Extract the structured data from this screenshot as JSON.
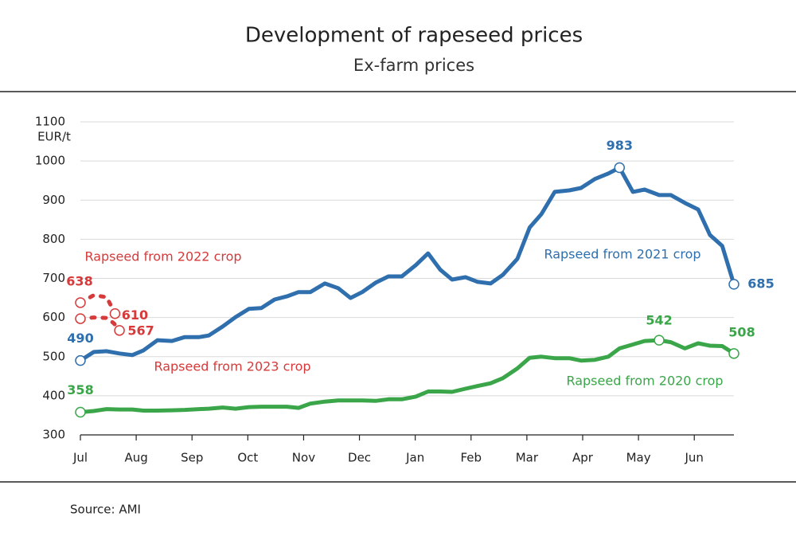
{
  "chart_data": {
    "type": "line",
    "title": "Development of rapeseed prices",
    "subtitle": "Ex-farm prices",
    "y_unit": "EUR/t",
    "source": "Source: AMI",
    "xlim": [
      0,
      11.71
    ],
    "xticks": [
      {
        "value": 0,
        "label": "Jul"
      },
      {
        "value": 1,
        "label": "Aug"
      },
      {
        "value": 2,
        "label": "Sep"
      },
      {
        "value": 3,
        "label": "Oct"
      },
      {
        "value": 4,
        "label": "Nov"
      },
      {
        "value": 5,
        "label": "Dec"
      },
      {
        "value": 6,
        "label": "Jan"
      },
      {
        "value": 7,
        "label": "Feb"
      },
      {
        "value": 8,
        "label": "Mar"
      },
      {
        "value": 9,
        "label": "Apr"
      },
      {
        "value": 10,
        "label": "May"
      },
      {
        "value": 11,
        "label": "Jun"
      }
    ],
    "ylim": [
      300,
      1100
    ],
    "yticks": [
      300,
      400,
      500,
      600,
      700,
      800,
      900,
      1000,
      1100
    ],
    "grid": true,
    "series": [
      {
        "name": "Rapseed from 2021 crop",
        "color": "#2f6fad",
        "dashed": false,
        "x": [
          0,
          0.24,
          0.47,
          0.7,
          0.93,
          1.13,
          1.38,
          1.64,
          1.87,
          2.13,
          2.3,
          2.55,
          2.78,
          3.02,
          3.24,
          3.48,
          3.7,
          3.91,
          4.12,
          4.38,
          4.62,
          4.84,
          5.05,
          5.29,
          5.52,
          5.76,
          6.01,
          6.23,
          6.45,
          6.66,
          6.9,
          7.12,
          7.35,
          7.57,
          7.83,
          8.05,
          8.26,
          8.5,
          8.76,
          8.97,
          9.22,
          9.46,
          9.66,
          9.9,
          10.11,
          10.37,
          10.58,
          10.83,
          11.07,
          11.28,
          11.5,
          11.71
        ],
        "values": [
          490,
          512,
          514,
          508,
          504,
          516,
          542,
          540,
          550,
          550,
          554,
          577,
          601,
          622,
          624,
          646,
          654,
          665,
          665,
          687,
          675,
          650,
          665,
          689,
          705,
          705,
          734,
          764,
          722,
          697,
          703,
          691,
          687,
          709,
          750,
          830,
          864,
          921,
          925,
          931,
          954,
          968,
          983,
          921,
          927,
          913,
          913,
          893,
          876,
          811,
          783,
          685
        ],
        "value_labels": [
          "490",
          null,
          null,
          null,
          null,
          null,
          null,
          null,
          null,
          null,
          null,
          null,
          null,
          null,
          null,
          null,
          null,
          null,
          null,
          null,
          null,
          null,
          null,
          null,
          null,
          null,
          null,
          null,
          null,
          null,
          null,
          null,
          null,
          null,
          null,
          null,
          null,
          null,
          null,
          null,
          null,
          null,
          "983",
          null,
          null,
          null,
          null,
          null,
          null,
          null,
          null,
          "685"
        ]
      },
      {
        "name": "Rapseed from 2020 crop",
        "color": "#3aa649",
        "dashed": false,
        "x": [
          0,
          0.24,
          0.47,
          0.7,
          0.93,
          1.13,
          1.38,
          1.64,
          1.87,
          2.13,
          2.3,
          2.55,
          2.78,
          3.02,
          3.24,
          3.48,
          3.7,
          3.91,
          4.12,
          4.38,
          4.62,
          4.84,
          5.05,
          5.29,
          5.52,
          5.76,
          6.01,
          6.23,
          6.45,
          6.66,
          6.9,
          7.12,
          7.35,
          7.57,
          7.83,
          8.05,
          8.26,
          8.5,
          8.76,
          8.97,
          9.22,
          9.46,
          9.66,
          9.9,
          10.11,
          10.37,
          10.58,
          10.83,
          11.07,
          11.28,
          11.5,
          11.71
        ],
        "values": [
          358,
          361,
          366,
          365,
          365,
          362,
          362,
          363,
          364,
          366,
          367,
          370,
          367,
          371,
          372,
          372,
          372,
          369,
          380,
          385,
          388,
          388,
          388,
          387,
          391,
          391,
          398,
          411,
          411,
          410,
          418,
          425,
          432,
          445,
          470,
          497,
          500,
          496,
          496,
          490,
          492,
          500,
          521,
          531,
          540,
          542,
          537,
          521,
          534,
          528,
          527,
          508
        ],
        "value_labels": [
          "358",
          null,
          null,
          null,
          null,
          null,
          null,
          null,
          null,
          null,
          null,
          null,
          null,
          null,
          null,
          null,
          null,
          null,
          null,
          null,
          null,
          null,
          null,
          null,
          null,
          null,
          null,
          null,
          null,
          null,
          null,
          null,
          null,
          null,
          null,
          null,
          null,
          null,
          null,
          null,
          null,
          null,
          null,
          null,
          null,
          "542",
          null,
          null,
          null,
          null,
          null,
          "508"
        ]
      },
      {
        "name": "Rapseed from 2022 crop",
        "color": "#d63a3a",
        "dashed": true,
        "x": [
          0,
          0.24,
          0.47,
          0.62
        ],
        "values": [
          638,
          657,
          652,
          610
        ],
        "value_labels": [
          "638",
          null,
          null,
          "610"
        ]
      },
      {
        "name": "Rapseed from 2023 crop",
        "color": "#d63a3a",
        "dashed": true,
        "x": [
          0,
          0.24,
          0.47,
          0.6,
          0.7
        ],
        "values": [
          597,
          600,
          599,
          585,
          567
        ],
        "value_labels": [
          null,
          null,
          null,
          null,
          "567"
        ]
      }
    ]
  }
}
